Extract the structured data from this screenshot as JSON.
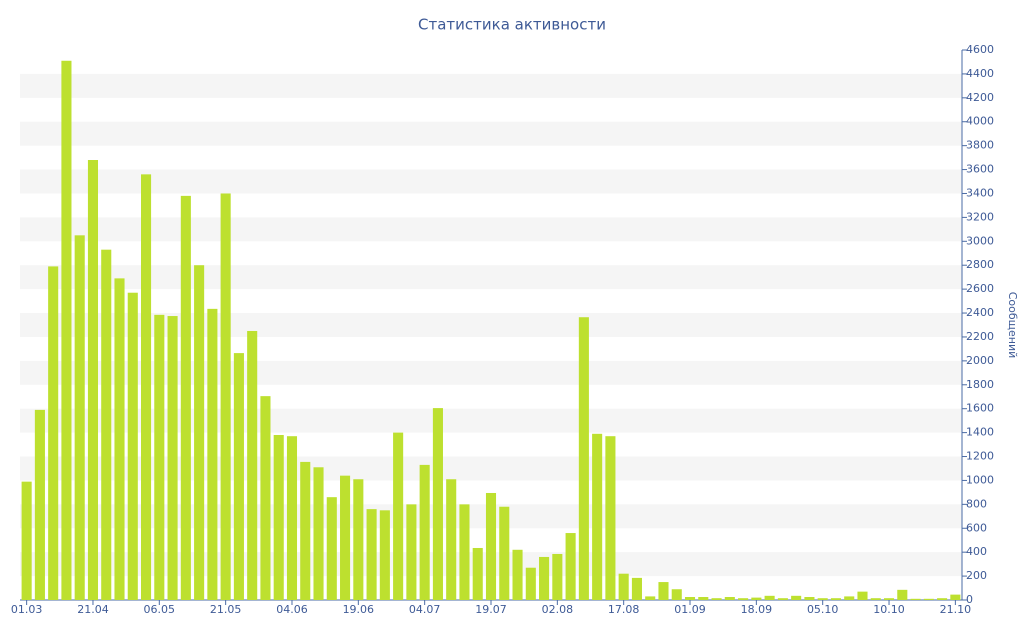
{
  "chart_data": {
    "type": "bar",
    "title": "Статистика активности",
    "y_label": "Сообщений",
    "categories": [
      "01.03",
      null,
      null,
      null,
      null,
      "21.04",
      null,
      null,
      null,
      null,
      "06.05",
      null,
      null,
      null,
      null,
      "21.05",
      null,
      null,
      null,
      null,
      "04.06",
      null,
      null,
      null,
      null,
      "19.06",
      null,
      null,
      null,
      null,
      "04.07",
      null,
      null,
      null,
      null,
      "19.07",
      null,
      null,
      null,
      null,
      "02.08",
      null,
      null,
      null,
      null,
      "17.08",
      null,
      null,
      null,
      null,
      "01.09",
      null,
      null,
      null,
      null,
      "18.09",
      null,
      null,
      null,
      null,
      "05.10",
      null,
      null,
      null,
      null,
      "10.10",
      null,
      null,
      null,
      null,
      "21.10"
    ],
    "values": [
      990,
      1590,
      2790,
      4510,
      3050,
      3680,
      2930,
      2690,
      2570,
      3560,
      2385,
      2375,
      3380,
      2800,
      2435,
      3400,
      2065,
      2250,
      1705,
      1380,
      1370,
      1155,
      1110,
      860,
      1040,
      1010,
      760,
      750,
      1400,
      800,
      1130,
      1605,
      1010,
      800,
      435,
      895,
      780,
      420,
      270,
      360,
      385,
      560,
      2365,
      1390,
      1370,
      220,
      185,
      30,
      150,
      90,
      25,
      25,
      15,
      25,
      15,
      20,
      35,
      15,
      35,
      25,
      15,
      15,
      30,
      70,
      15,
      15,
      85,
      10,
      10,
      15,
      45
    ],
    "color": "#bde02f",
    "ylim": [
      0,
      4600
    ],
    "yticks": [
      0,
      200,
      400,
      600,
      800,
      1000,
      1200,
      1400,
      1600,
      1800,
      2000,
      2200,
      2400,
      2600,
      2800,
      3000,
      3200,
      3400,
      3600,
      3800,
      4000,
      4200,
      4400,
      4600
    ],
    "axis_side": "right",
    "banded_grid": true
  }
}
